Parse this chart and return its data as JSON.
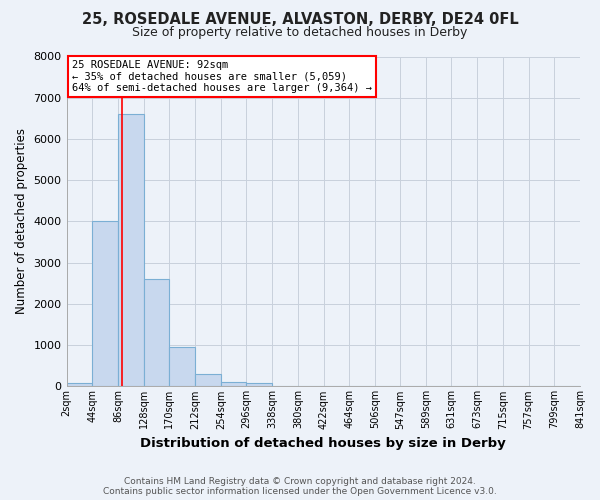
{
  "title1": "25, ROSEDALE AVENUE, ALVASTON, DERBY, DE24 0FL",
  "title2": "Size of property relative to detached houses in Derby",
  "xlabel": "Distribution of detached houses by size in Derby",
  "ylabel": "Number of detached properties",
  "footer1": "Contains HM Land Registry data © Crown copyright and database right 2024.",
  "footer2": "Contains public sector information licensed under the Open Government Licence v3.0.",
  "annotation_line1": "25 ROSEDALE AVENUE: 92sqm",
  "annotation_line2": "← 35% of detached houses are smaller (5,059)",
  "annotation_line3": "64% of semi-detached houses are larger (9,364) →",
  "bin_edges": [
    2,
    44,
    86,
    128,
    170,
    212,
    254,
    296,
    338,
    380,
    422,
    464,
    506,
    547,
    589,
    631,
    673,
    715,
    757,
    799,
    841
  ],
  "bar_heights": [
    75,
    4000,
    6600,
    2600,
    950,
    300,
    100,
    75,
    0,
    0,
    0,
    0,
    0,
    0,
    0,
    0,
    0,
    0,
    0,
    0
  ],
  "bar_color": "#c8d8ee",
  "bar_edge_color": "#7bafd4",
  "grid_color": "#c8d0dc",
  "vline_x": 92,
  "vline_color": "red",
  "annotation_box_color": "white",
  "annotation_box_edge_color": "red",
  "ylim": [
    0,
    8000
  ],
  "background_color": "#edf2f9",
  "plot_bg_color": "#edf2f9",
  "tick_labels": [
    "2sqm",
    "44sqm",
    "86sqm",
    "128sqm",
    "170sqm",
    "212sqm",
    "254sqm",
    "296sqm",
    "338sqm",
    "380sqm",
    "422sqm",
    "464sqm",
    "506sqm",
    "547sqm",
    "589sqm",
    "631sqm",
    "673sqm",
    "715sqm",
    "757sqm",
    "799sqm",
    "841sqm"
  ],
  "title1_fontsize": 10.5,
  "title2_fontsize": 9,
  "ylabel_fontsize": 8.5,
  "xlabel_fontsize": 9.5,
  "tick_fontsize": 7,
  "annotation_fontsize": 7.5,
  "footer_fontsize": 6.5
}
